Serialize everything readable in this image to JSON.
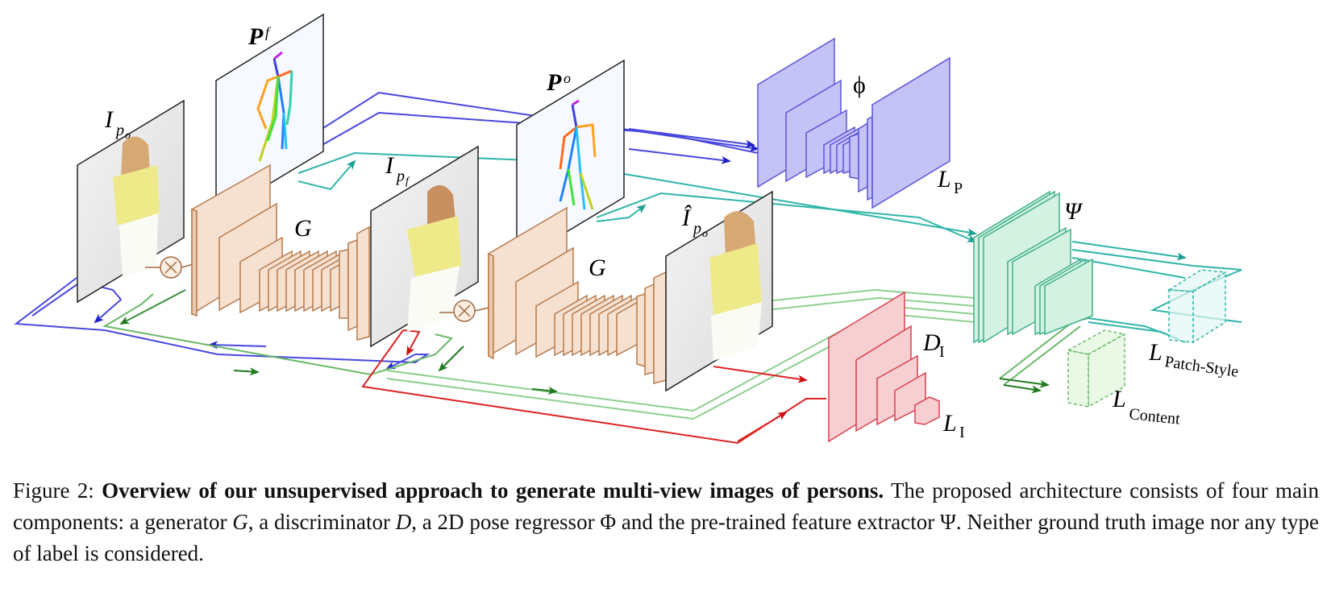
{
  "figure": {
    "labels": {
      "I_po": "I",
      "I_po_sub": "p",
      "I_po_subsub": "o",
      "P_f": "P",
      "P_f_sub": "f",
      "I_pf": "I",
      "I_pf_sub": "p",
      "I_pf_subsub": "f",
      "P_o": "P",
      "P_o_sub": "o",
      "G1": "G",
      "G2": "G",
      "I_hat_po": "Î",
      "I_hat_po_sub": "p",
      "I_hat_po_subsub": "o",
      "phi": "ϕ",
      "L_P": "L",
      "L_P_sub": "P",
      "psi": "Ψ",
      "D_I": "D",
      "D_I_sub": "I",
      "L_I": "L",
      "L_I_sub": "I",
      "L_patch": "L",
      "L_patch_sub": "Patch-Style",
      "L_content": "L",
      "L_content_sub": "Content"
    },
    "colors": {
      "blue": "#3333dd",
      "teal": "#2fb5a8",
      "green": "#3a9a3a",
      "lightgreen": "#8fcf8f",
      "red": "#dd1c1c",
      "generator": "#f6e1d1",
      "generator_stroke": "#b67a4c",
      "pose_net": "#c4c2f6",
      "pose_net_stroke": "#5b55d8",
      "feature": "#d4f2e2",
      "feature_stroke": "#3fb08a",
      "disc": "#f6cfd3",
      "disc_stroke": "#d8404e"
    }
  },
  "caption": {
    "label": "Figure 2:",
    "title": "Overview of our unsupervised approach to generate multi-view images of persons.",
    "text_1": " The proposed architecture consists of four main components: a generator ",
    "G": "G",
    "text_2": ", a discriminator ",
    "D": "D",
    "text_3": ", a 2D pose regressor Φ and the pre-trained feature extractor Ψ. Neither ground truth image nor any type of label is considered."
  }
}
